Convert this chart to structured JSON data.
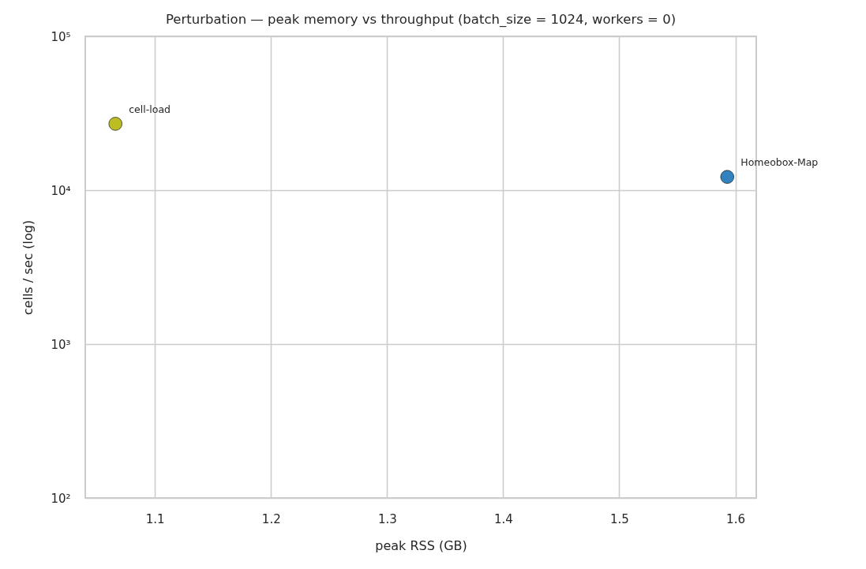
{
  "chart_data": {
    "type": "scatter",
    "title": "Perturbation — peak memory vs throughput (batch_size = 1024, workers = 0)",
    "xlabel": "peak RSS (GB)",
    "ylabel": "cells / sec (log)",
    "series": [
      {
        "name": "cell-load",
        "color": "#bcbd22",
        "x": [
          1.066
        ],
        "values": [
          27000
        ]
      },
      {
        "name": "Homeobox-Map",
        "color": "#3182bd",
        "x": [
          1.593
        ],
        "values": [
          12200
        ]
      }
    ],
    "xlim": [
      1.04,
      1.618
    ],
    "xticks": [
      1.1,
      1.2,
      1.3,
      1.4,
      1.5,
      1.6
    ],
    "ylim": [
      100,
      100000
    ],
    "yticks": [
      {
        "value": 100,
        "label": "10²"
      },
      {
        "value": 1000,
        "label": "10³"
      },
      {
        "value": 10000,
        "label": "10⁴"
      },
      {
        "value": 100000,
        "label": "10⁵"
      }
    ],
    "log": true,
    "grid": true,
    "marker": "circle"
  }
}
